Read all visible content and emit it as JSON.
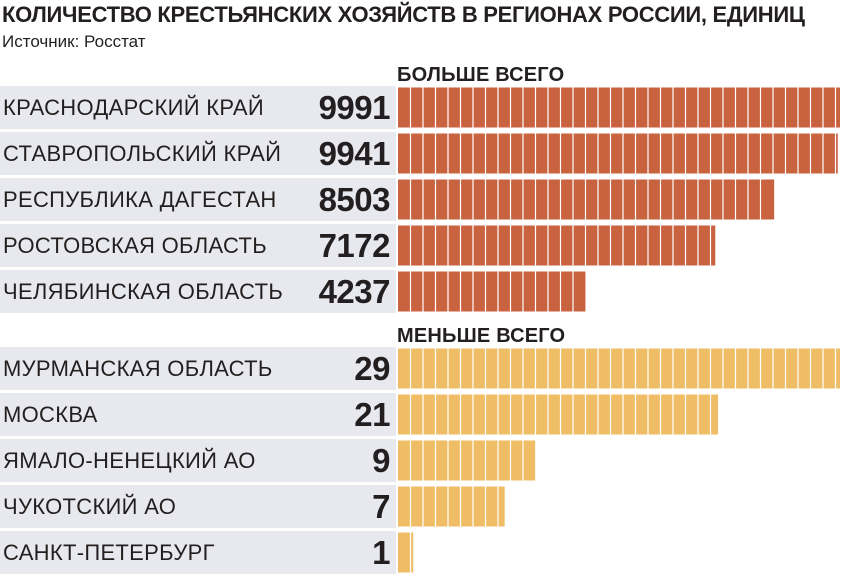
{
  "title": "КОЛИЧЕСТВО КРЕСТЬЯНСКИХ ХОЗЯЙСТВ В РЕГИОНАХ РОССИИ, ЕДИНИЦ",
  "source": "Источник: Росстат",
  "colors": {
    "top_bar": "#c8623f",
    "bottom_bar": "#f0bd67",
    "row_background": "#e8e9ee",
    "text": "#231f20"
  },
  "chart_data": [
    {
      "type": "bar",
      "orientation": "horizontal",
      "title": "БОЛЬШЕ ВСЕГО",
      "categories": [
        "КРАСНОДАРСКИЙ КРАЙ",
        "СТАВРОПОЛЬСКИЙ КРАЙ",
        "РЕСПУБЛИКА ДАГЕСТАН",
        "РОСТОВСКАЯ ОБЛАСТЬ",
        "ЧЕЛЯБИНСКАЯ ОБЛАСТЬ"
      ],
      "values": [
        9991,
        9941,
        8503,
        7172,
        4237
      ],
      "data_labels": [
        "9991",
        "9941",
        "8503",
        "7172",
        "4237"
      ],
      "color": "#c8623f",
      "grid": false
    },
    {
      "type": "bar",
      "orientation": "horizontal",
      "title": "МЕНЬШЕ ВСЕГО",
      "categories": [
        "МУРМАНСКАЯ ОБЛАСТЬ",
        "МОСКВА",
        "ЯМАЛО-НЕНЕЦКИЙ АО",
        "ЧУКОТСКИЙ АО",
        "САНКТ-ПЕТЕРБУРГ"
      ],
      "values": [
        29,
        21,
        9,
        7,
        1
      ],
      "data_labels": [
        "29",
        "21",
        "9",
        "7",
        "1"
      ],
      "color": "#f0bd67",
      "grid": false
    }
  ]
}
